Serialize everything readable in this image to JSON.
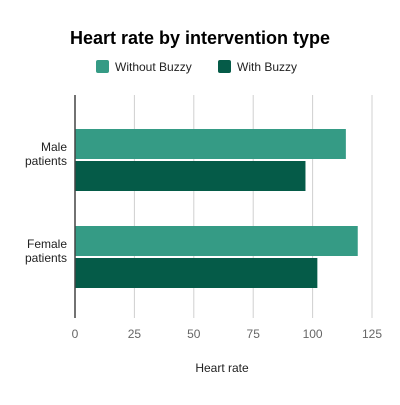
{
  "chart_data": {
    "type": "bar",
    "orientation": "horizontal",
    "title": "Heart rate by intervention type",
    "xlabel": "Heart rate",
    "ylabel": "",
    "categories": [
      "Male patients",
      "Female patients"
    ],
    "category_lines": [
      [
        "Male",
        "patients"
      ],
      [
        "Female",
        "patients"
      ]
    ],
    "series": [
      {
        "name": "Without Buzzy",
        "color": "#359b85",
        "values": [
          114,
          119
        ]
      },
      {
        "name": "With Buzzy",
        "color": "#055b48",
        "values": [
          97,
          102
        ]
      }
    ],
    "xlim": [
      0,
      125
    ],
    "xticks": [
      0,
      25,
      50,
      75,
      100,
      125
    ],
    "xtick_labels": [
      "0",
      "25",
      "50",
      "75",
      "100",
      "125"
    ],
    "grid": true,
    "legend_position": "top"
  }
}
